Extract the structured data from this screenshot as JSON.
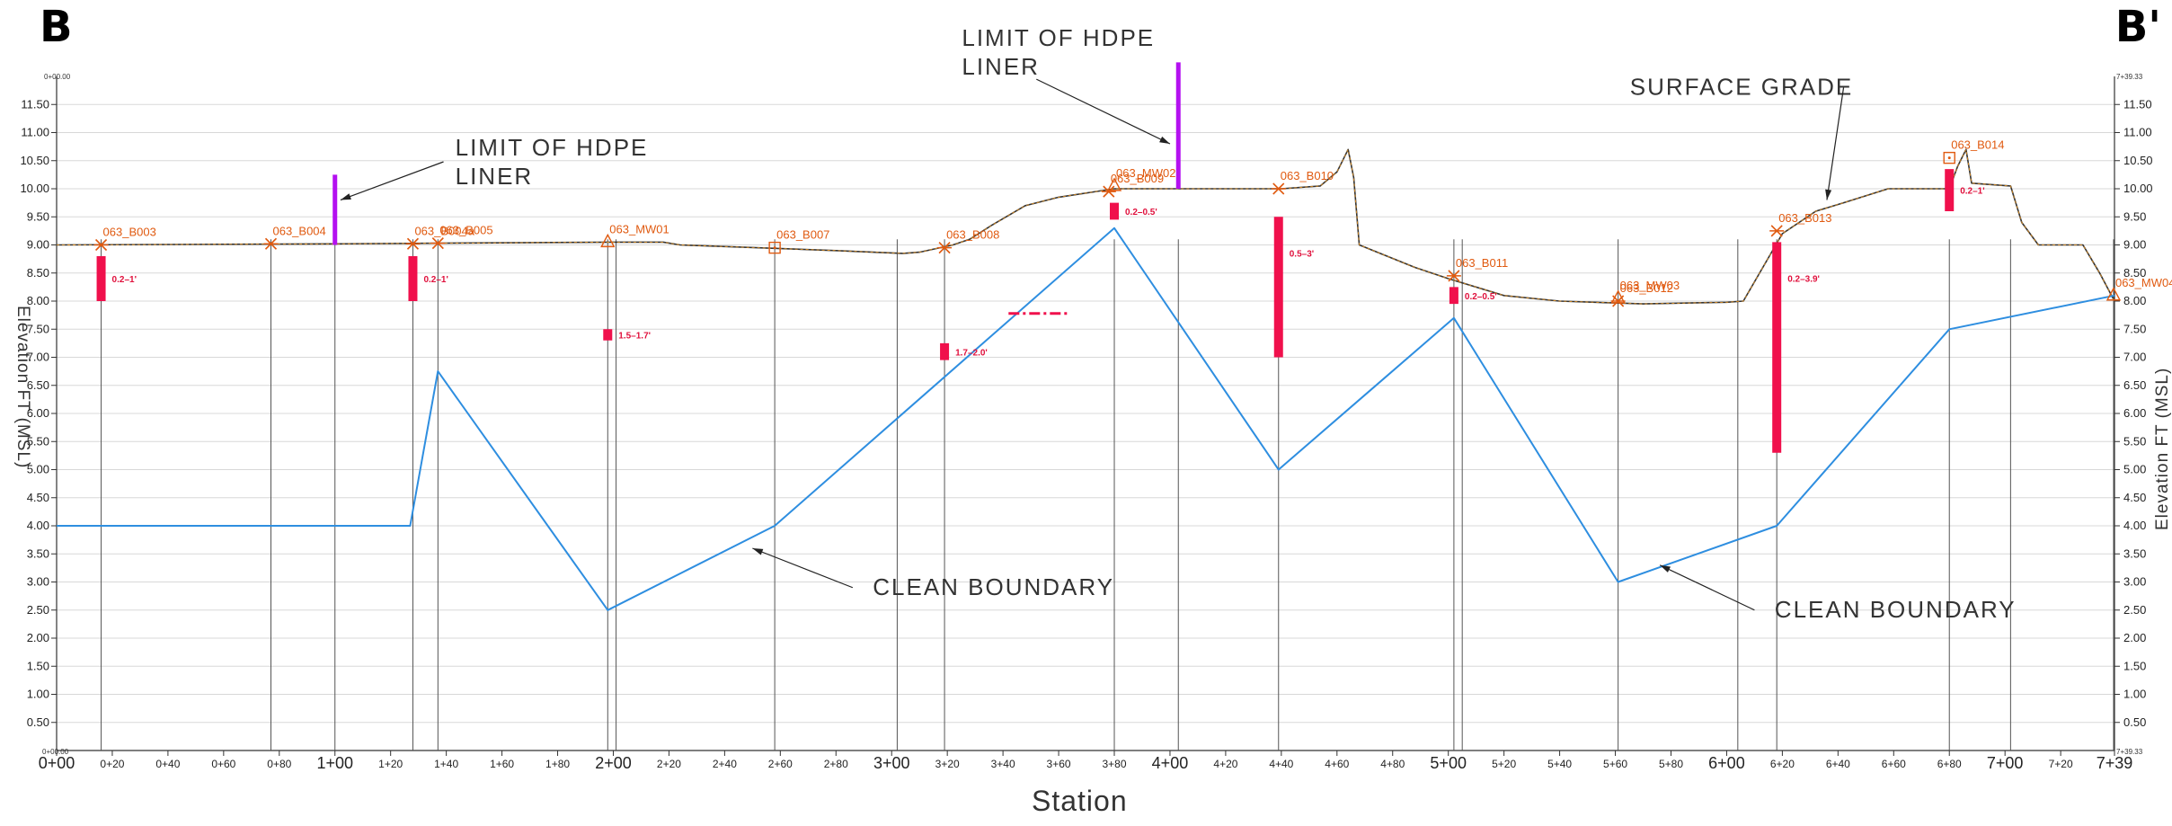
{
  "title": {
    "left": "B",
    "right": "B'"
  },
  "station_corner": {
    "left_top": "0+00.00",
    "left_bottom": "0+00.00",
    "right_top": "7+39.33",
    "right_bottom": "7+39.33"
  },
  "axes": {
    "x_label": "Station",
    "y_label_left": "Elevation FT (MSL)",
    "y_label_right": "Elevation FT (MSL)",
    "x_range": [
      0,
      739.33
    ],
    "y_range": [
      0,
      12
    ],
    "x_ticks": [
      {
        "v": 0,
        "label": "0+00",
        "major": true
      },
      {
        "v": 20,
        "label": "0+20",
        "major": false
      },
      {
        "v": 40,
        "label": "0+40",
        "major": false
      },
      {
        "v": 60,
        "label": "0+60",
        "major": false
      },
      {
        "v": 80,
        "label": "0+80",
        "major": false
      },
      {
        "v": 100,
        "label": "1+00",
        "major": true
      },
      {
        "v": 120,
        "label": "1+20",
        "major": false
      },
      {
        "v": 140,
        "label": "1+40",
        "major": false
      },
      {
        "v": 160,
        "label": "1+60",
        "major": false
      },
      {
        "v": 180,
        "label": "1+80",
        "major": false
      },
      {
        "v": 200,
        "label": "2+00",
        "major": true
      },
      {
        "v": 220,
        "label": "2+20",
        "major": false
      },
      {
        "v": 240,
        "label": "2+40",
        "major": false
      },
      {
        "v": 260,
        "label": "2+60",
        "major": false
      },
      {
        "v": 280,
        "label": "2+80",
        "major": false
      },
      {
        "v": 300,
        "label": "3+00",
        "major": true
      },
      {
        "v": 320,
        "label": "3+20",
        "major": false
      },
      {
        "v": 340,
        "label": "3+40",
        "major": false
      },
      {
        "v": 360,
        "label": "3+60",
        "major": false
      },
      {
        "v": 380,
        "label": "3+80",
        "major": false
      },
      {
        "v": 400,
        "label": "4+00",
        "major": true
      },
      {
        "v": 420,
        "label": "4+20",
        "major": false
      },
      {
        "v": 440,
        "label": "4+40",
        "major": false
      },
      {
        "v": 460,
        "label": "4+60",
        "major": false
      },
      {
        "v": 480,
        "label": "4+80",
        "major": false
      },
      {
        "v": 500,
        "label": "5+00",
        "major": true
      },
      {
        "v": 520,
        "label": "5+20",
        "major": false
      },
      {
        "v": 540,
        "label": "5+40",
        "major": false
      },
      {
        "v": 560,
        "label": "5+60",
        "major": false
      },
      {
        "v": 580,
        "label": "5+80",
        "major": false
      },
      {
        "v": 600,
        "label": "6+00",
        "major": true
      },
      {
        "v": 620,
        "label": "6+20",
        "major": false
      },
      {
        "v": 640,
        "label": "6+40",
        "major": false
      },
      {
        "v": 660,
        "label": "6+60",
        "major": false
      },
      {
        "v": 680,
        "label": "6+80",
        "major": false
      },
      {
        "v": 700,
        "label": "7+00",
        "major": true
      },
      {
        "v": 720,
        "label": "7+20",
        "major": false
      },
      {
        "v": 739.33,
        "label": "7+39",
        "major": true
      }
    ],
    "y_ticks": [
      {
        "v": 0.5,
        "label": "0.50"
      },
      {
        "v": 1,
        "label": "1.00"
      },
      {
        "v": 1.5,
        "label": "1.50"
      },
      {
        "v": 2,
        "label": "2.00"
      },
      {
        "v": 2.5,
        "label": "2.50"
      },
      {
        "v": 3,
        "label": "3.00"
      },
      {
        "v": 3.5,
        "label": "3.50"
      },
      {
        "v": 4,
        "label": "4.00"
      },
      {
        "v": 4.5,
        "label": "4.50"
      },
      {
        "v": 5,
        "label": "5.00"
      },
      {
        "v": 5.5,
        "label": "5.50"
      },
      {
        "v": 6,
        "label": "6.00"
      },
      {
        "v": 6.5,
        "label": "6.50"
      },
      {
        "v": 7,
        "label": "7.00"
      },
      {
        "v": 7.5,
        "label": "7.50"
      },
      {
        "v": 8,
        "label": "8.00"
      },
      {
        "v": 8.5,
        "label": "8.50"
      },
      {
        "v": 9,
        "label": "9.00"
      },
      {
        "v": 9.5,
        "label": "9.50"
      },
      {
        "v": 10,
        "label": "10.00"
      },
      {
        "v": 10.5,
        "label": "10.50"
      },
      {
        "v": 11,
        "label": "11.00"
      },
      {
        "v": 11.5,
        "label": "11.50"
      }
    ]
  },
  "chart_data": {
    "type": "line",
    "series": [
      {
        "key": "surface",
        "color": "#333333",
        "points": [
          [
            0,
            9
          ],
          [
            100,
            9.02
          ],
          [
            200,
            9.05
          ],
          [
            218,
            9.05
          ],
          [
            224,
            9.0
          ],
          [
            280,
            8.9
          ],
          [
            304,
            8.85
          ],
          [
            310,
            8.87
          ],
          [
            322,
            9.0
          ],
          [
            328,
            9.1
          ],
          [
            336,
            9.35
          ],
          [
            348,
            9.7
          ],
          [
            360,
            9.85
          ],
          [
            380,
            10.0
          ],
          [
            440,
            10.0
          ],
          [
            454,
            10.05
          ],
          [
            460,
            10.3
          ],
          [
            464,
            10.7
          ],
          [
            466,
            10.2
          ],
          [
            468,
            9.0
          ],
          [
            488,
            8.6
          ],
          [
            500,
            8.4
          ],
          [
            520,
            8.1
          ],
          [
            540,
            8.0
          ],
          [
            570,
            7.95
          ],
          [
            600,
            7.98
          ],
          [
            606,
            8.0
          ],
          [
            620,
            9.2
          ],
          [
            632,
            9.6
          ],
          [
            642,
            9.75
          ],
          [
            658,
            10.0
          ],
          [
            680,
            10.0
          ],
          [
            683,
            10.4
          ],
          [
            686,
            10.7
          ],
          [
            688,
            10.1
          ],
          [
            702,
            10.05
          ],
          [
            706,
            9.4
          ],
          [
            712,
            9.0
          ],
          [
            728,
            9.0
          ],
          [
            734,
            8.5
          ],
          [
            739.33,
            8.0
          ]
        ]
      },
      {
        "key": "clean_boundary",
        "color": "#2e8ee0",
        "points": [
          [
            0,
            4
          ],
          [
            127,
            4
          ],
          [
            137,
            6.75
          ],
          [
            198,
            2.5
          ],
          [
            258,
            4.0
          ],
          [
            380,
            9.3
          ],
          [
            439,
            5.0
          ],
          [
            502,
            7.7
          ],
          [
            561,
            3.0
          ],
          [
            618,
            4.0
          ],
          [
            680,
            7.5
          ],
          [
            739.33,
            8.1
          ]
        ]
      }
    ],
    "boring_stations": [
      16,
      77,
      100,
      128,
      137,
      198,
      201,
      258,
      302,
      319,
      380,
      403,
      439,
      502,
      505,
      561,
      604,
      618,
      680,
      702,
      739
    ],
    "borings": [
      {
        "name": "063_B003",
        "x": 16,
        "y": 9.0,
        "sym": "star"
      },
      {
        "name": "063_B004",
        "x": 77,
        "y": 9.02,
        "sym": "star"
      },
      {
        "name": "063_B004a",
        "x": 128,
        "y": 9.02,
        "sym": "star"
      },
      {
        "name": "063_B005",
        "x": 137,
        "y": 9.03,
        "sym": "star"
      },
      {
        "name": "063_MW01",
        "x": 198,
        "y": 9.05,
        "sym": "triangle"
      },
      {
        "name": "063_B007",
        "x": 258,
        "y": 8.95,
        "sym": "square"
      },
      {
        "name": "063_B008",
        "x": 319,
        "y": 8.95,
        "sym": "star"
      },
      {
        "name": "063_B009",
        "x": 378,
        "y": 9.95,
        "sym": "star"
      },
      {
        "name": "063_MW02",
        "x": 380,
        "y": 10.05,
        "sym": "triangle"
      },
      {
        "name": "063_B010",
        "x": 439,
        "y": 10.0,
        "sym": "star"
      },
      {
        "name": "063_B011",
        "x": 502,
        "y": 8.45,
        "sym": "star"
      },
      {
        "name": "063_MW03",
        "x": 561,
        "y": 8.05,
        "sym": "triangle"
      },
      {
        "name": "063_B012",
        "x": 561,
        "y": 8.0,
        "sym": "star"
      },
      {
        "name": "063_B013",
        "x": 618,
        "y": 9.25,
        "sym": "star"
      },
      {
        "name": "063_B014",
        "x": 680,
        "y": 10.55,
        "sym": "square"
      },
      {
        "name": "063_MW04",
        "x": 739,
        "y": 8.1,
        "sym": "triangle"
      }
    ],
    "contamination": [
      {
        "x": 16,
        "top": 8.8,
        "bottom": 8.0,
        "label": "0.2–1'"
      },
      {
        "x": 128,
        "top": 8.8,
        "bottom": 8.0,
        "label": "0.2–1'"
      },
      {
        "x": 198,
        "top": 7.5,
        "bottom": 7.3,
        "label": "1.5–1.7'"
      },
      {
        "x": 319,
        "top": 7.25,
        "bottom": 6.95,
        "label": "1.7–2.0'"
      },
      {
        "x": 380,
        "top": 9.75,
        "bottom": 9.45,
        "label": "0.2–0.5'"
      },
      {
        "x": 439,
        "top": 9.5,
        "bottom": 7.0,
        "label": "0.5–3'"
      },
      {
        "x": 502,
        "top": 8.25,
        "bottom": 7.95,
        "label": "0.2–0.5'"
      },
      {
        "x": 618,
        "top": 9.05,
        "bottom": 5.3,
        "label": "0.2–3.9'"
      },
      {
        "x": 680,
        "top": 10.35,
        "bottom": 9.6,
        "label": "0.2–1'"
      }
    ],
    "dashed_marker": {
      "x1": 342,
      "x2": 364,
      "y": 7.78
    },
    "liners": [
      {
        "x": 100,
        "bottom": 9.0,
        "top": 10.25
      },
      {
        "x": 403,
        "bottom": 10.0,
        "top": 12.25
      }
    ],
    "annotations": [
      {
        "lines": [
          "LIMIT OF HDPE",
          "LINER"
        ],
        "text_xy": [
          140,
          10.5
        ],
        "arrow_from": [
          139,
          10.48
        ],
        "arrow_to": [
          102,
          9.8
        ]
      },
      {
        "lines": [
          "LIMIT OF HDPE",
          "LINER"
        ],
        "text_xy": [
          322,
          12.45
        ],
        "arrow_from": [
          352,
          11.95
        ],
        "arrow_to": [
          400,
          10.8
        ]
      },
      {
        "lines": [
          "SURFACE GRADE"
        ],
        "text_xy": [
          562,
          11.8
        ],
        "arrow_from": [
          642,
          11.8
        ],
        "arrow_to": [
          636,
          9.8
        ]
      },
      {
        "lines": [
          "CLEAN BOUNDARY"
        ],
        "text_xy": [
          290,
          2.9
        ],
        "arrow_from": [
          286,
          2.9
        ],
        "arrow_to": [
          250,
          3.6
        ]
      },
      {
        "lines": [
          "CLEAN BOUNDARY"
        ],
        "text_xy": [
          614,
          2.5
        ],
        "arrow_from": [
          610,
          2.5
        ],
        "arrow_to": [
          576,
          3.3
        ]
      }
    ],
    "colors": {
      "liner": "#b410f0",
      "contamination": "#f0104c",
      "boring_symbol": "#e05a10",
      "grid": "#d8d8d8"
    }
  }
}
